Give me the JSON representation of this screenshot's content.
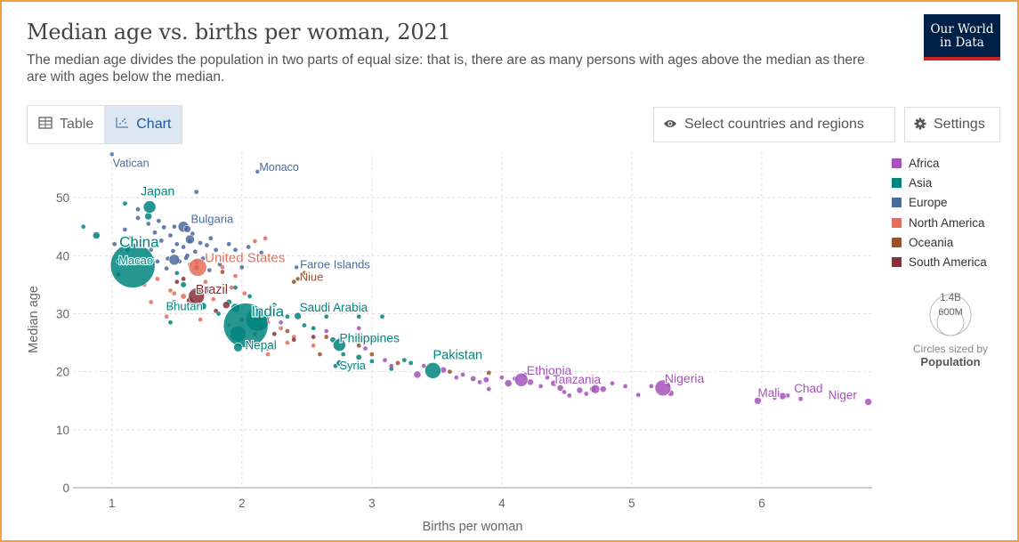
{
  "header": {
    "title": "Median age vs. births per woman, 2021",
    "subtitle": "The median age divides the population in two parts of equal size: that is, there are as many persons with ages above the median as there are with ages below the median.",
    "logo_line1": "Our World",
    "logo_line2": "in Data"
  },
  "toolbar": {
    "table_label": "Table",
    "chart_label": "Chart",
    "select_label": "Select countries and regions",
    "settings_label": "Settings"
  },
  "legend": {
    "items": [
      {
        "label": "Africa",
        "color": "#a652ba"
      },
      {
        "label": "Asia",
        "color": "#00847e"
      },
      {
        "label": "Europe",
        "color": "#4c6a9c"
      },
      {
        "label": "North America",
        "color": "#e56e5a"
      },
      {
        "label": "Oceania",
        "color": "#9a5129"
      },
      {
        "label": "South America",
        "color": "#883039"
      }
    ],
    "size_big": "1.4B",
    "size_small": "600M",
    "size_note": "Circles sized by",
    "size_note_bold": "Population"
  },
  "chart_data": {
    "type": "scatter",
    "title": "Median age vs. births per woman, 2021",
    "xlabel": "Births per woman",
    "ylabel": "Median age",
    "xlim": [
      0.7,
      6.85
    ],
    "ylim": [
      0,
      58
    ],
    "xticks": [
      1,
      2,
      3,
      4,
      5,
      6
    ],
    "yticks": [
      0,
      10,
      20,
      30,
      40,
      50
    ],
    "grid": true,
    "legend_position": "right",
    "colors": {
      "Africa": "#a652ba",
      "Asia": "#00847e",
      "Europe": "#4c6a9c",
      "North America": "#e56e5a",
      "Oceania": "#9a5129",
      "South America": "#883039"
    },
    "labeled_points": [
      {
        "name": "Vatican",
        "x": 1.0,
        "y": 57.5,
        "region": "Europe",
        "size": 2.5
      },
      {
        "name": "Monaco",
        "x": 2.12,
        "y": 54.5,
        "region": "Europe",
        "size": 2.5
      },
      {
        "name": "Japan",
        "x": 1.29,
        "y": 48.4,
        "region": "Asia",
        "size": 7
      },
      {
        "name": "Bulgaria",
        "x": 1.58,
        "y": 44.6,
        "region": "Europe",
        "size": 4
      },
      {
        "name": "China",
        "x": 1.16,
        "y": 38.3,
        "region": "Asia",
        "size": 25
      },
      {
        "name": "Macao",
        "x": 1.05,
        "y": 39.0,
        "region": "Asia",
        "size": 2.5
      },
      {
        "name": "United States",
        "x": 1.66,
        "y": 38.0,
        "region": "North America",
        "size": 10
      },
      {
        "name": "Faroe Islands",
        "x": 2.42,
        "y": 38.0,
        "region": "Europe",
        "size": 2.5
      },
      {
        "name": "Niue",
        "x": 2.43,
        "y": 36.0,
        "region": "Oceania",
        "size": 2.5
      },
      {
        "name": "Brazil",
        "x": 1.65,
        "y": 33.0,
        "region": "South America",
        "size": 9
      },
      {
        "name": "India",
        "x": 2.03,
        "y": 28.0,
        "region": "Asia",
        "size": 25
      },
      {
        "name": "Bhutan",
        "x": 1.45,
        "y": 30.8,
        "region": "Asia",
        "size": 2.5
      },
      {
        "name": "Saudi Arabia",
        "x": 2.43,
        "y": 29.6,
        "region": "Asia",
        "size": 4
      },
      {
        "name": "Nepal",
        "x": 1.97,
        "y": 24.2,
        "region": "Asia",
        "size": 5
      },
      {
        "name": "Philippines",
        "x": 2.75,
        "y": 24.6,
        "region": "Asia",
        "size": 7
      },
      {
        "name": "Syria",
        "x": 2.75,
        "y": 21.5,
        "region": "Asia",
        "size": 3.5
      },
      {
        "name": "Pakistan",
        "x": 3.47,
        "y": 20.2,
        "region": "Asia",
        "size": 9
      },
      {
        "name": "Ethiopia",
        "x": 4.15,
        "y": 18.6,
        "region": "Africa",
        "size": 7.5
      },
      {
        "name": "Tanzania",
        "x": 4.72,
        "y": 17.0,
        "region": "Africa",
        "size": 5
      },
      {
        "name": "Nigeria",
        "x": 5.24,
        "y": 17.2,
        "region": "Africa",
        "size": 9
      },
      {
        "name": "Mali",
        "x": 5.97,
        "y": 15.0,
        "region": "Africa",
        "size": 4
      },
      {
        "name": "Chad",
        "x": 6.16,
        "y": 15.8,
        "region": "Africa",
        "size": 4
      },
      {
        "name": "Niger",
        "x": 6.82,
        "y": 14.8,
        "region": "Africa",
        "size": 4
      }
    ],
    "other_points": [
      {
        "x": 1.02,
        "y": 42.0,
        "region": "Europe"
      },
      {
        "x": 1.1,
        "y": 44.5,
        "region": "Europe"
      },
      {
        "x": 1.14,
        "y": 43.0,
        "region": "Europe"
      },
      {
        "x": 1.2,
        "y": 46.5,
        "region": "Europe"
      },
      {
        "x": 1.24,
        "y": 42.5,
        "region": "Europe"
      },
      {
        "x": 1.28,
        "y": 45.5,
        "region": "Europe"
      },
      {
        "x": 1.3,
        "y": 41.0,
        "region": "Europe"
      },
      {
        "x": 1.33,
        "y": 44.0,
        "region": "Europe"
      },
      {
        "x": 1.36,
        "y": 46.0,
        "region": "Europe"
      },
      {
        "x": 1.38,
        "y": 42.6,
        "region": "Europe"
      },
      {
        "x": 1.4,
        "y": 44.9,
        "region": "Europe"
      },
      {
        "x": 1.43,
        "y": 39.5,
        "region": "Europe"
      },
      {
        "x": 1.45,
        "y": 43.5,
        "region": "Europe"
      },
      {
        "x": 1.47,
        "y": 40.8,
        "region": "Europe"
      },
      {
        "x": 1.5,
        "y": 42.0,
        "region": "Europe"
      },
      {
        "x": 1.52,
        "y": 39.0,
        "region": "Europe"
      },
      {
        "x": 1.55,
        "y": 41.5,
        "region": "Europe"
      },
      {
        "x": 1.58,
        "y": 40.0,
        "region": "Europe"
      },
      {
        "x": 1.6,
        "y": 42.5,
        "region": "Europe"
      },
      {
        "x": 1.62,
        "y": 43.8,
        "region": "Europe"
      },
      {
        "x": 1.64,
        "y": 40.7,
        "region": "Europe"
      },
      {
        "x": 1.68,
        "y": 42.2,
        "region": "Europe"
      },
      {
        "x": 1.7,
        "y": 39.5,
        "region": "Europe"
      },
      {
        "x": 1.73,
        "y": 41.8,
        "region": "Europe"
      },
      {
        "x": 1.76,
        "y": 43.0,
        "region": "Europe"
      },
      {
        "x": 1.8,
        "y": 41.0,
        "region": "Europe"
      },
      {
        "x": 1.83,
        "y": 38.5,
        "region": "Europe"
      },
      {
        "x": 1.86,
        "y": 40.0,
        "region": "Europe"
      },
      {
        "x": 1.48,
        "y": 45.0,
        "region": "Europe"
      },
      {
        "x": 1.35,
        "y": 39.0,
        "region": "Europe"
      },
      {
        "x": 1.65,
        "y": 51.0,
        "region": "Europe"
      },
      {
        "x": 1.57,
        "y": 39.6,
        "region": "Europe"
      },
      {
        "x": 1.2,
        "y": 48.0,
        "region": "Europe"
      },
      {
        "x": 1.9,
        "y": 42.0,
        "region": "Europe"
      },
      {
        "x": 1.95,
        "y": 41.0,
        "region": "Europe"
      },
      {
        "x": 2.0,
        "y": 38.0,
        "region": "Europe"
      },
      {
        "x": 2.05,
        "y": 41.5,
        "region": "Europe"
      },
      {
        "x": 2.15,
        "y": 40.5,
        "region": "Europe"
      },
      {
        "x": 1.75,
        "y": 37.5,
        "region": "Europe"
      },
      {
        "x": 1.42,
        "y": 37.8,
        "region": "Europe"
      },
      {
        "x": 1.12,
        "y": 41.0,
        "region": "Europe"
      },
      {
        "x": 1.55,
        "y": 45.0,
        "region": "Europe",
        "size": 6
      },
      {
        "x": 1.48,
        "y": 39.3,
        "region": "Europe",
        "size": 6
      },
      {
        "x": 1.6,
        "y": 42.8,
        "region": "Europe",
        "size": 5
      },
      {
        "x": 0.78,
        "y": 45.0,
        "region": "Asia"
      },
      {
        "x": 0.88,
        "y": 43.5,
        "region": "Asia",
        "size": 4
      },
      {
        "x": 1.07,
        "y": 39.5,
        "region": "Asia",
        "size": 3
      },
      {
        "x": 1.28,
        "y": 46.8,
        "region": "Asia",
        "size": 4
      },
      {
        "x": 1.5,
        "y": 37.0,
        "region": "Asia"
      },
      {
        "x": 1.55,
        "y": 35.0,
        "region": "Asia",
        "size": 3
      },
      {
        "x": 1.6,
        "y": 32.5,
        "region": "Asia"
      },
      {
        "x": 1.7,
        "y": 31.3,
        "region": "Asia",
        "size": 4
      },
      {
        "x": 1.75,
        "y": 34.0,
        "region": "Asia",
        "size": 3
      },
      {
        "x": 1.82,
        "y": 30.0,
        "region": "Asia"
      },
      {
        "x": 1.9,
        "y": 32.0,
        "region": "Asia",
        "size": 3
      },
      {
        "x": 1.95,
        "y": 31.0,
        "region": "Asia",
        "size": 5
      },
      {
        "x": 2.12,
        "y": 29.0,
        "region": "Asia",
        "size": 13
      },
      {
        "x": 1.97,
        "y": 26.5,
        "region": "Asia",
        "size": 9
      },
      {
        "x": 1.95,
        "y": 34.5,
        "region": "Asia"
      },
      {
        "x": 2.06,
        "y": 33.0,
        "region": "Asia"
      },
      {
        "x": 2.25,
        "y": 31.5,
        "region": "Asia"
      },
      {
        "x": 2.35,
        "y": 29.5,
        "region": "Asia"
      },
      {
        "x": 2.48,
        "y": 28.0,
        "region": "Asia"
      },
      {
        "x": 2.55,
        "y": 27.5,
        "region": "Asia"
      },
      {
        "x": 2.65,
        "y": 29.5,
        "region": "Asia"
      },
      {
        "x": 2.9,
        "y": 29.5,
        "region": "Asia"
      },
      {
        "x": 3.08,
        "y": 29.5,
        "region": "Asia"
      },
      {
        "x": 2.7,
        "y": 25.5,
        "region": "Asia",
        "size": 3
      },
      {
        "x": 2.78,
        "y": 23.0,
        "region": "Asia"
      },
      {
        "x": 2.9,
        "y": 22.5,
        "region": "Asia",
        "size": 3
      },
      {
        "x": 3.0,
        "y": 21.8,
        "region": "Asia"
      },
      {
        "x": 3.15,
        "y": 20.5,
        "region": "Asia"
      },
      {
        "x": 3.25,
        "y": 22.0,
        "region": "Asia"
      },
      {
        "x": 3.3,
        "y": 21.5,
        "region": "Asia"
      },
      {
        "x": 2.72,
        "y": 21.0,
        "region": "Asia"
      },
      {
        "x": 1.05,
        "y": 36.8,
        "region": "Asia"
      },
      {
        "x": 1.45,
        "y": 28.5,
        "region": "Asia"
      },
      {
        "x": 1.1,
        "y": 49.0,
        "region": "Asia"
      },
      {
        "x": 1.48,
        "y": 32.0,
        "region": "Asia"
      },
      {
        "x": 1.2,
        "y": 38.5,
        "region": "North America"
      },
      {
        "x": 1.35,
        "y": 36.0,
        "region": "North America"
      },
      {
        "x": 1.45,
        "y": 34.0,
        "region": "North America"
      },
      {
        "x": 1.55,
        "y": 33.0,
        "region": "North America",
        "size": 3
      },
      {
        "x": 1.6,
        "y": 38.5,
        "region": "North America"
      },
      {
        "x": 1.72,
        "y": 35.5,
        "region": "North America"
      },
      {
        "x": 1.78,
        "y": 32.5,
        "region": "North America"
      },
      {
        "x": 1.85,
        "y": 38.0,
        "region": "North America"
      },
      {
        "x": 1.92,
        "y": 34.5,
        "region": "North America"
      },
      {
        "x": 2.02,
        "y": 33.5,
        "region": "North America"
      },
      {
        "x": 2.1,
        "y": 30.5,
        "region": "North America"
      },
      {
        "x": 2.2,
        "y": 28.5,
        "region": "North America"
      },
      {
        "x": 2.3,
        "y": 27.5,
        "region": "North America"
      },
      {
        "x": 2.4,
        "y": 26.0,
        "region": "North America"
      },
      {
        "x": 2.55,
        "y": 24.5,
        "region": "North America"
      },
      {
        "x": 2.35,
        "y": 25.0,
        "region": "North America"
      },
      {
        "x": 2.1,
        "y": 42.5,
        "region": "North America"
      },
      {
        "x": 2.18,
        "y": 43.0,
        "region": "North America"
      },
      {
        "x": 1.48,
        "y": 33.5,
        "region": "North America"
      },
      {
        "x": 1.25,
        "y": 35.0,
        "region": "North America"
      },
      {
        "x": 1.3,
        "y": 32.0,
        "region": "North America"
      },
      {
        "x": 1.42,
        "y": 29.5,
        "region": "North America"
      },
      {
        "x": 1.95,
        "y": 36.5,
        "region": "North America"
      },
      {
        "x": 2.0,
        "y": 39.5,
        "region": "North America"
      },
      {
        "x": 1.9,
        "y": 28.0,
        "region": "North America"
      },
      {
        "x": 2.2,
        "y": 23.0,
        "region": "North America"
      },
      {
        "x": 1.68,
        "y": 29.0,
        "region": "North America"
      },
      {
        "x": 1.65,
        "y": 39.0,
        "region": "North America",
        "size": 3
      },
      {
        "x": 2.4,
        "y": 35.5,
        "region": "Oceania"
      },
      {
        "x": 2.48,
        "y": 37.0,
        "region": "Oceania"
      },
      {
        "x": 2.6,
        "y": 23.0,
        "region": "Oceania"
      },
      {
        "x": 2.9,
        "y": 24.5,
        "region": "Oceania"
      },
      {
        "x": 3.2,
        "y": 21.5,
        "region": "Oceania"
      },
      {
        "x": 3.6,
        "y": 20.0,
        "region": "Oceania"
      },
      {
        "x": 3.9,
        "y": 19.8,
        "region": "Oceania"
      },
      {
        "x": 2.35,
        "y": 27.0,
        "region": "Oceania"
      },
      {
        "x": 2.2,
        "y": 24.0,
        "region": "Oceania"
      },
      {
        "x": 2.65,
        "y": 26.0,
        "region": "Oceania"
      },
      {
        "x": 3.0,
        "y": 23.0,
        "region": "Oceania"
      },
      {
        "x": 1.65,
        "y": 38.0,
        "region": "Oceania",
        "size": 3
      },
      {
        "x": 1.85,
        "y": 37.2,
        "region": "Oceania"
      },
      {
        "x": 2.1,
        "y": 26.5,
        "region": "Oceania"
      },
      {
        "x": 1.5,
        "y": 35.5,
        "region": "South America"
      },
      {
        "x": 1.6,
        "y": 32.2,
        "region": "South America",
        "size": 4
      },
      {
        "x": 1.8,
        "y": 30.5,
        "region": "South America"
      },
      {
        "x": 1.88,
        "y": 31.5,
        "region": "South America",
        "size": 4
      },
      {
        "x": 2.0,
        "y": 29.0,
        "region": "South America"
      },
      {
        "x": 2.15,
        "y": 27.5,
        "region": "South America"
      },
      {
        "x": 2.25,
        "y": 26.5,
        "region": "South America"
      },
      {
        "x": 2.4,
        "y": 25.5,
        "region": "South America"
      },
      {
        "x": 2.55,
        "y": 26.0,
        "region": "South America"
      },
      {
        "x": 1.55,
        "y": 36.0,
        "region": "South America"
      },
      {
        "x": 2.75,
        "y": 25.5,
        "region": "Africa"
      },
      {
        "x": 2.95,
        "y": 24.0,
        "region": "Africa"
      },
      {
        "x": 2.3,
        "y": 28.5,
        "region": "Africa"
      },
      {
        "x": 2.2,
        "y": 29.5,
        "region": "Africa"
      },
      {
        "x": 2.65,
        "y": 27.0,
        "region": "Africa"
      },
      {
        "x": 2.9,
        "y": 27.5,
        "region": "Africa"
      },
      {
        "x": 3.0,
        "y": 25.5,
        "region": "Africa"
      },
      {
        "x": 3.35,
        "y": 19.5,
        "region": "Africa",
        "size": 4
      },
      {
        "x": 3.4,
        "y": 21.0,
        "region": "Africa"
      },
      {
        "x": 3.55,
        "y": 20.3,
        "region": "Africa",
        "size": 3.5
      },
      {
        "x": 3.7,
        "y": 19.5,
        "region": "Africa"
      },
      {
        "x": 3.78,
        "y": 18.8,
        "region": "Africa",
        "size": 3
      },
      {
        "x": 3.83,
        "y": 18.2,
        "region": "Africa"
      },
      {
        "x": 3.88,
        "y": 18.6,
        "region": "Africa",
        "size": 3
      },
      {
        "x": 3.9,
        "y": 17.0,
        "region": "Africa"
      },
      {
        "x": 4.0,
        "y": 19.0,
        "region": "Africa"
      },
      {
        "x": 4.05,
        "y": 18.0,
        "region": "Africa",
        "size": 4
      },
      {
        "x": 4.1,
        "y": 18.8,
        "region": "Africa"
      },
      {
        "x": 4.18,
        "y": 19.5,
        "region": "Africa"
      },
      {
        "x": 4.22,
        "y": 18.2,
        "region": "Africa",
        "size": 3.5
      },
      {
        "x": 4.3,
        "y": 17.5,
        "region": "Africa"
      },
      {
        "x": 4.35,
        "y": 19.0,
        "region": "Africa"
      },
      {
        "x": 4.4,
        "y": 18.0,
        "region": "Africa",
        "size": 3.5
      },
      {
        "x": 4.45,
        "y": 17.2,
        "region": "Africa",
        "size": 3.5
      },
      {
        "x": 4.48,
        "y": 16.5,
        "region": "Africa"
      },
      {
        "x": 4.5,
        "y": 18.5,
        "region": "Africa",
        "size": 4
      },
      {
        "x": 4.52,
        "y": 15.9,
        "region": "Africa"
      },
      {
        "x": 4.6,
        "y": 16.8,
        "region": "Africa",
        "size": 3.5
      },
      {
        "x": 4.65,
        "y": 16.2,
        "region": "Africa"
      },
      {
        "x": 4.7,
        "y": 17.0,
        "region": "Africa",
        "size": 3.5
      },
      {
        "x": 4.78,
        "y": 17.0,
        "region": "Africa",
        "size": 3.5
      },
      {
        "x": 4.85,
        "y": 18.0,
        "region": "Africa"
      },
      {
        "x": 4.95,
        "y": 17.5,
        "region": "Africa"
      },
      {
        "x": 5.05,
        "y": 16.0,
        "region": "Africa"
      },
      {
        "x": 5.15,
        "y": 17.5,
        "region": "Africa"
      },
      {
        "x": 5.3,
        "y": 16.3,
        "region": "Africa",
        "size": 3.5
      },
      {
        "x": 5.28,
        "y": 17.8,
        "region": "Africa"
      },
      {
        "x": 6.1,
        "y": 15.5,
        "region": "Africa"
      },
      {
        "x": 6.3,
        "y": 15.3,
        "region": "Africa"
      },
      {
        "x": 6.2,
        "y": 15.9,
        "region": "Africa"
      },
      {
        "x": 3.1,
        "y": 22.0,
        "region": "Africa"
      },
      {
        "x": 3.15,
        "y": 21.0,
        "region": "Africa"
      },
      {
        "x": 3.65,
        "y": 19.0,
        "region": "Africa"
      }
    ]
  }
}
